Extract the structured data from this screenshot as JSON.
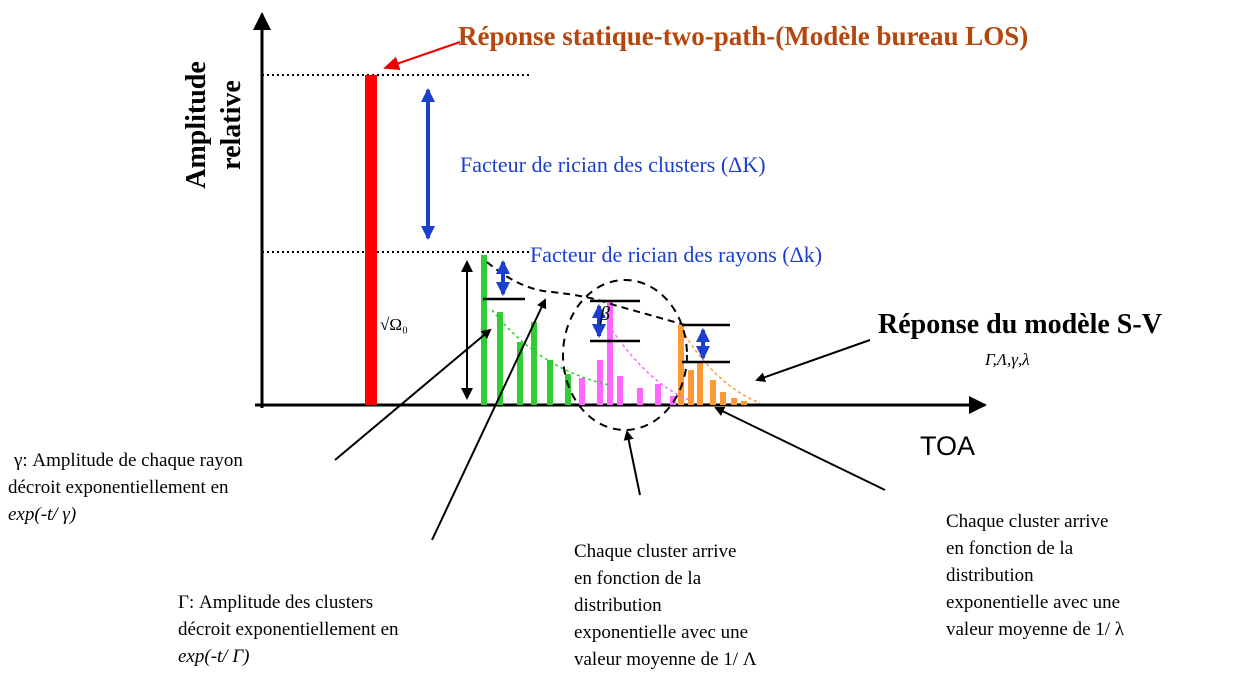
{
  "title": "Réponse statique-two-path-(Modèle bureau LOS)",
  "y_axis_label": [
    "Amplitude",
    "relative"
  ],
  "x_axis_label": "TOA",
  "cluster_rician": "Facteur de rician des clusters (ΔK)",
  "ray_rician": "Facteur de rician des rayons (Δk)",
  "omega_label": "√Ω₀",
  "beta_label": "β",
  "sv_response": {
    "title": "Réponse du modèle S-V",
    "params": "Γ,Λ,γ,λ"
  },
  "annotations": {
    "ray_decay": [
      "γ: Amplitude de chaque rayon",
      "décroit exponentiellement en",
      "exp(-t/ γ)"
    ],
    "cluster_decay": [
      "Γ:  Amplitude des clusters",
      "décroit exponentiellement en",
      "exp(-t/ Γ)"
    ],
    "cluster_arrival": [
      "Chaque cluster arrive",
      "en fonction de la",
      "distribution",
      "exponentielle avec une",
      "valeur moyenne de 1/ Λ"
    ],
    "ray_arrival": [
      "Chaque cluster arrive",
      "en fonction de la",
      "distribution",
      "exponentielle avec une",
      "valeur moyenne de 1/ λ"
    ]
  }
}
